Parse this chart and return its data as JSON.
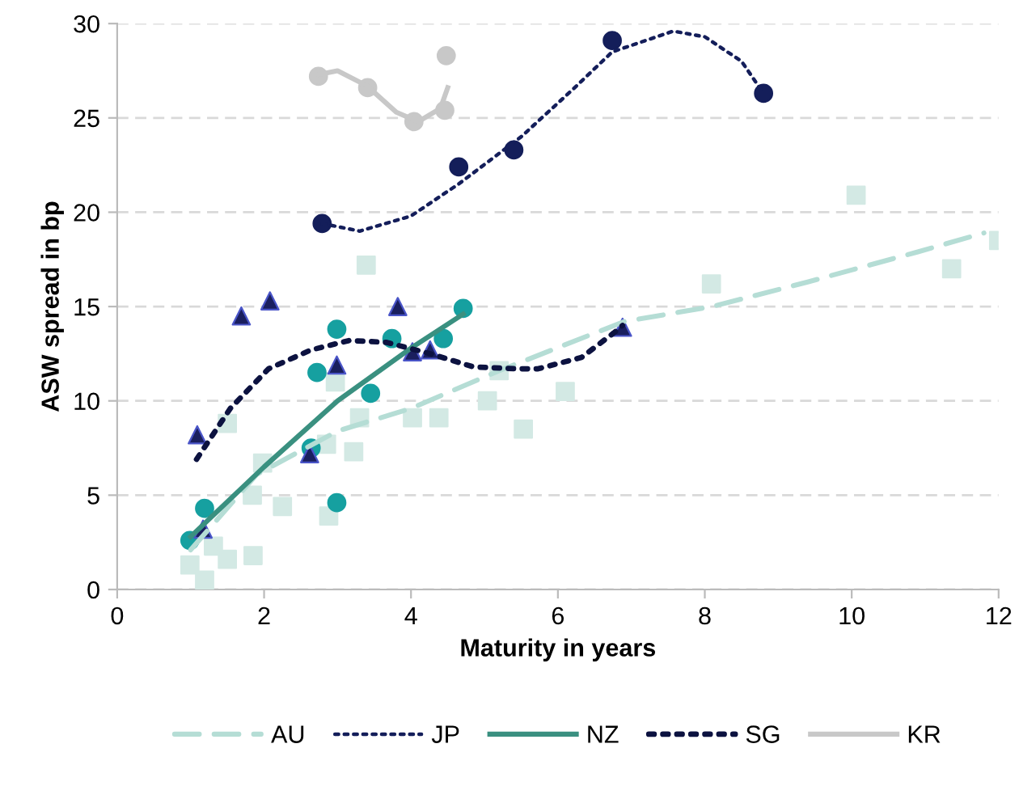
{
  "chart_data": {
    "type": "scatter",
    "xlabel": "Maturity in years",
    "ylabel": "ASW spread in bp",
    "xlim": [
      0,
      12
    ],
    "xticks": [
      0,
      2,
      4,
      6,
      8,
      10,
      12
    ],
    "ylim": [
      0,
      30
    ],
    "yticks": [
      0,
      5,
      10,
      15,
      20,
      25,
      30
    ],
    "grid": "y",
    "legend": "bottom",
    "series": [
      {
        "marker": "square",
        "color": "#d3e9e4",
        "x": [
          0.99,
          1.19,
          1.31,
          1.5,
          1.5,
          1.84,
          1.85,
          1.98,
          2.25,
          2.85,
          2.88,
          2.97,
          3.22,
          3.3,
          3.39,
          4.02,
          4.38,
          5.04,
          5.2,
          5.53,
          6.1,
          8.09,
          10.06,
          11.36,
          12.0
        ],
        "values": [
          1.3,
          0.5,
          2.3,
          1.6,
          8.8,
          5.0,
          1.8,
          6.7,
          4.4,
          7.7,
          3.9,
          11.0,
          7.3,
          9.1,
          17.2,
          9.1,
          9.1,
          10.0,
          11.6,
          8.5,
          10.5,
          16.2,
          20.9,
          17.0,
          18.5
        ]
      },
      {
        "marker": "circle",
        "color": "#141e5a",
        "x": [
          2.79,
          4.65,
          5.4,
          6.74,
          8.8
        ],
        "values": [
          19.4,
          22.4,
          23.3,
          29.1,
          26.3
        ]
      },
      {
        "marker": "circle",
        "color": "#16a0a0",
        "x": [
          0.99,
          1.19,
          2.64,
          2.72,
          2.99,
          2.99,
          3.45,
          3.74,
          4.44,
          4.71
        ],
        "values": [
          2.6,
          4.3,
          7.5,
          11.5,
          13.8,
          4.6,
          10.4,
          13.3,
          13.3,
          14.9
        ]
      },
      {
        "marker": "triangle",
        "color": "#1a1f5e",
        "x": [
          1.09,
          1.17,
          1.69,
          2.08,
          2.62,
          2.99,
          3.82,
          4.02,
          4.26,
          6.88
        ],
        "values": [
          8.2,
          3.2,
          14.5,
          15.3,
          7.2,
          11.9,
          15.0,
          12.6,
          12.7,
          13.9
        ]
      },
      {
        "marker": "circle",
        "color": "#c8c8c8",
        "x": [
          2.74,
          3.41,
          4.04,
          4.46,
          4.48
        ],
        "values": [
          27.2,
          26.6,
          24.8,
          25.4,
          28.3
        ]
      },
      {
        "type": "line",
        "name": "AU",
        "line_style": "dashed",
        "color": "#b5ddd5",
        "x": [
          1.0,
          1.9,
          3.0,
          4.0,
          5.2,
          6.9,
          8.1,
          9.4,
          10.9,
          11.8
        ],
        "values": [
          2.1,
          6.1,
          8.4,
          9.6,
          11.6,
          14.2,
          15.0,
          16.3,
          17.9,
          18.9
        ]
      },
      {
        "type": "line",
        "name": "JP",
        "line_style": "dotted",
        "color": "#141e5a",
        "x": [
          2.79,
          3.3,
          4.0,
          4.65,
          5.5,
          6.2,
          6.74,
          7.57,
          8.0,
          8.5,
          8.8
        ],
        "values": [
          19.4,
          19.0,
          19.8,
          21.5,
          24.0,
          26.5,
          28.5,
          29.6,
          29.3,
          28.0,
          26.3
        ]
      },
      {
        "type": "line",
        "name": "NZ",
        "line_style": "solid",
        "color": "#3a9080",
        "x": [
          1.0,
          2.0,
          3.0,
          4.0,
          4.71
        ],
        "values": [
          2.8,
          6.5,
          10.0,
          12.8,
          14.6
        ]
      },
      {
        "type": "line",
        "name": "SG",
        "line_style": "dotted",
        "color": "#0c1240",
        "x": [
          1.08,
          1.54,
          2.06,
          2.64,
          3.16,
          3.67,
          4.26,
          4.85,
          5.43,
          5.73,
          6.32,
          6.76,
          6.88
        ],
        "values": [
          6.9,
          9.6,
          11.7,
          12.7,
          13.2,
          13.1,
          12.5,
          11.8,
          11.7,
          11.7,
          12.3,
          13.6,
          14.0
        ]
      },
      {
        "type": "line",
        "name": "KR",
        "line_style": "solid",
        "color": "#c8c8c8",
        "x": [
          2.74,
          3.0,
          3.4,
          3.8,
          4.1,
          4.4,
          4.5
        ],
        "values": [
          27.3,
          27.5,
          26.7,
          25.3,
          24.8,
          25.5,
          26.6
        ]
      }
    ]
  }
}
